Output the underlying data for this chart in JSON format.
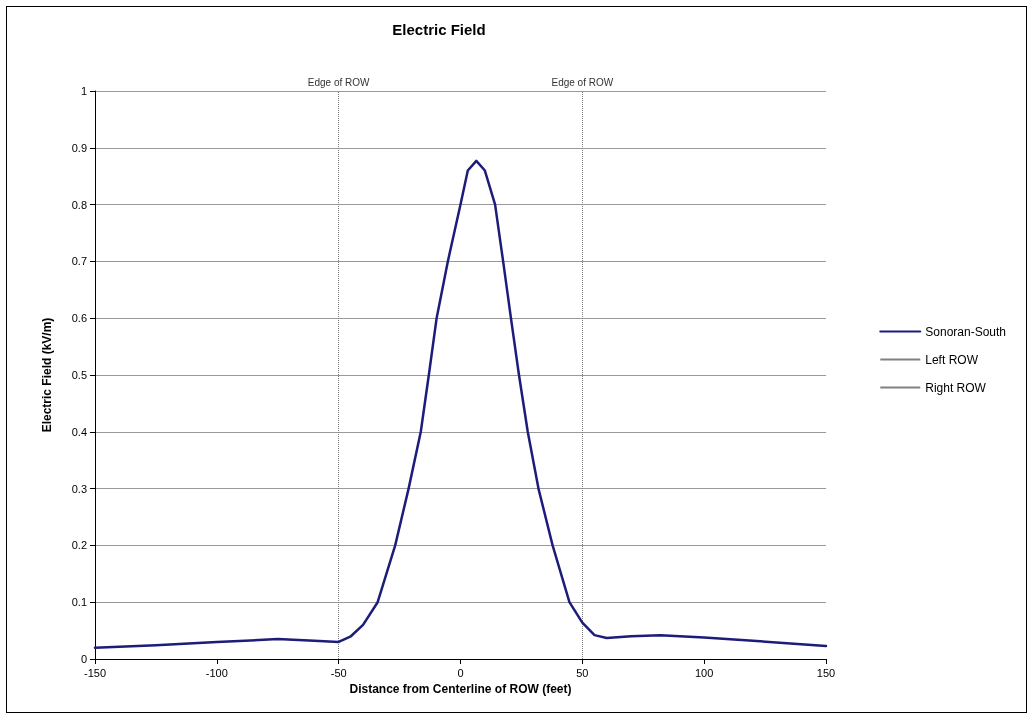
{
  "chart_data": {
    "type": "line",
    "title": "Electric Field",
    "xlabel": "Distance from Centerline of ROW (feet)",
    "ylabel": "Electric Field (kV/m)",
    "xlim": [
      -150,
      150
    ],
    "xticks": [
      -150,
      -100,
      -50,
      0,
      50,
      100,
      150
    ],
    "ylim": [
      0,
      1
    ],
    "yticks": [
      0,
      0.1,
      0.2,
      0.3,
      0.4,
      0.5,
      0.6,
      0.7,
      0.8,
      0.9,
      1
    ],
    "grid": "y",
    "legend": "right",
    "marker": "none",
    "ref_lines": [
      {
        "axis": "x",
        "value": -50,
        "label": "Edge of ROW",
        "color": "#808080",
        "line_style": "dotted"
      },
      {
        "axis": "x",
        "value": 50,
        "label": "Edge of ROW",
        "color": "#808080",
        "line_style": "dotted"
      }
    ],
    "series": [
      {
        "name": "Sonoran-South",
        "color": "#1c1c7a",
        "line_style": "solid",
        "x": [
          -150,
          -125,
          -100,
          -75,
          -60,
          -50,
          -45,
          -40,
          -34,
          -26.8,
          -21.3,
          -16.3,
          -13,
          -9.8,
          -5.2,
          0,
          3,
          6.5,
          10,
          14.2,
          17.5,
          20.7,
          24,
          27.6,
          32,
          37.8,
          44.7,
          50,
          55,
          60,
          70,
          82,
          100,
          120,
          150
        ],
        "values": [
          0.02,
          0.024,
          0.03,
          0.035,
          0.032,
          0.03,
          0.04,
          0.06,
          0.1,
          0.2,
          0.3,
          0.4,
          0.5,
          0.6,
          0.7,
          0.8,
          0.86,
          0.877,
          0.86,
          0.8,
          0.7,
          0.6,
          0.5,
          0.4,
          0.3,
          0.2,
          0.1,
          0.064,
          0.042,
          0.037,
          0.04,
          0.042,
          0.038,
          0.032,
          0.023
        ]
      }
    ],
    "annotations": [
      "Left ROW",
      "Right ROW"
    ]
  }
}
